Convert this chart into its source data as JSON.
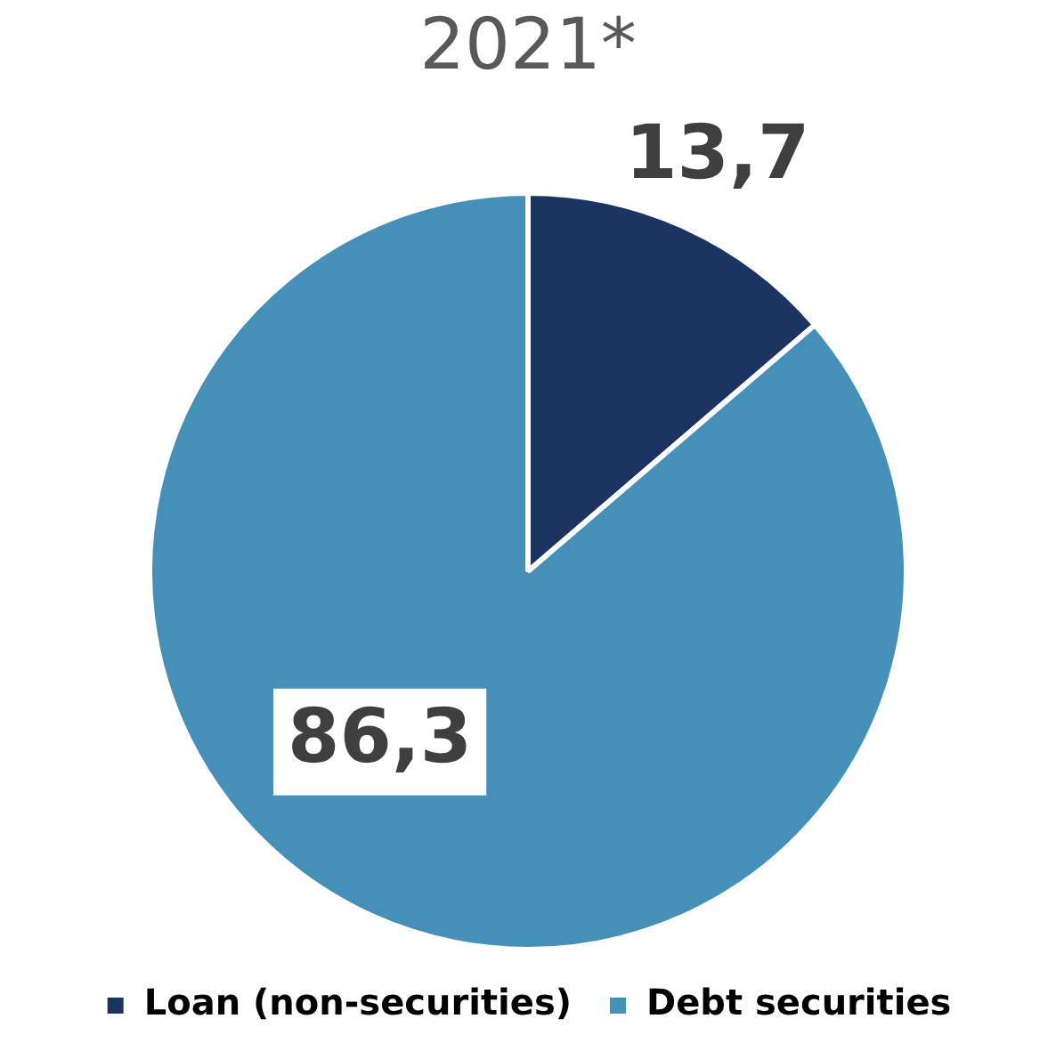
{
  "chart_data": {
    "type": "pie",
    "title": "2021*",
    "categories": [
      "Loan (non-securities)",
      "Debt securities"
    ],
    "values": [
      13.7,
      86.3
    ],
    "value_labels": [
      "13,7",
      "86,3"
    ],
    "colors": [
      "#1b3461",
      "#4590b9"
    ],
    "legend": "bottom"
  }
}
